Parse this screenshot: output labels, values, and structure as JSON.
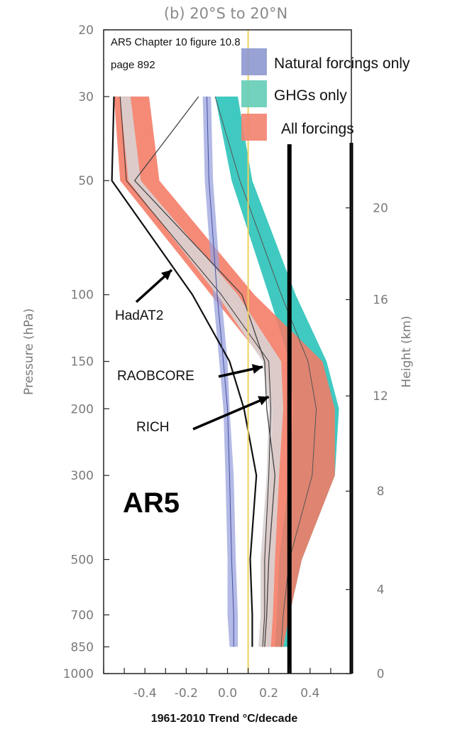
{
  "chart_data": {
    "type": "line",
    "title": "(b) 20°S to 20°N",
    "source_note": [
      "AR5 Chapter 10 figure 10.8",
      "page 892"
    ],
    "xlabel": "1961-2010 Trend °C/decade",
    "ylabel": "Pressure (hPa)",
    "ylabel_right": "Height (km)",
    "xlim": [
      -0.6,
      0.6
    ],
    "xticks": [
      "-0.4",
      "-0.2",
      "0.0",
      "0.2",
      "0.4"
    ],
    "xtick_values": [
      -0.4,
      -0.2,
      0.0,
      0.2,
      0.4
    ],
    "y_scale": "log",
    "ylim": [
      1000,
      20
    ],
    "yticks": [
      20,
      30,
      50,
      100,
      150,
      200,
      300,
      500,
      700,
      850,
      1000
    ],
    "right_ticks": [
      {
        "label": "20",
        "pressure": 59
      },
      {
        "label": "16",
        "pressure": 103
      },
      {
        "label": "12",
        "pressure": 185
      },
      {
        "label": "8",
        "pressure": 330
      },
      {
        "label": "4",
        "pressure": 600
      },
      {
        "label": "0",
        "pressure": 1000
      }
    ],
    "legend": [
      {
        "name": "Natural forcings only",
        "color": "#8e98cf"
      },
      {
        "name": "GHGs only",
        "color": "#63cdb6"
      },
      {
        "name": "All forcings",
        "color": "#f2826e"
      }
    ],
    "bands": [
      {
        "name": "GHGs only",
        "color": "#36c6bd",
        "opacity": 0.95,
        "p": [
          30,
          50,
          100,
          150,
          200,
          300,
          500,
          700,
          850
        ],
        "lo": [
          -0.06,
          0.02,
          0.2,
          0.3,
          0.32,
          0.3,
          0.25,
          0.24,
          0.23
        ],
        "hi": [
          0.05,
          0.12,
          0.33,
          0.48,
          0.54,
          0.52,
          0.36,
          0.3,
          0.29
        ]
      },
      {
        "name": "All forcings",
        "color": "#f47a64",
        "opacity": 0.88,
        "p": [
          30,
          50,
          100,
          150,
          200,
          300,
          500,
          700,
          850
        ],
        "lo": [
          -0.55,
          -0.52,
          -0.08,
          0.18,
          0.22,
          0.21,
          0.17,
          0.17,
          0.17
        ],
        "hi": [
          -0.38,
          -0.33,
          0.13,
          0.46,
          0.52,
          0.52,
          0.36,
          0.3,
          0.27
        ]
      },
      {
        "name": "Natural forcings only",
        "color": "#9aa3dd",
        "opacity": 0.75,
        "p": [
          30,
          50,
          100,
          150,
          200,
          300,
          500,
          700,
          850
        ],
        "lo": [
          -0.12,
          -0.11,
          -0.07,
          -0.04,
          -0.02,
          -0.01,
          0.0,
          0.0,
          0.01
        ],
        "hi": [
          -0.08,
          -0.07,
          -0.03,
          0.0,
          0.01,
          0.03,
          0.04,
          0.05,
          0.05
        ]
      },
      {
        "name": "",
        "color": "#d9d2d2",
        "opacity": 0.9,
        "p": [
          30,
          50,
          100,
          150,
          200,
          300,
          500,
          700,
          850
        ],
        "lo": [
          -0.52,
          -0.48,
          -0.05,
          0.17,
          0.2,
          0.19,
          0.16,
          0.16,
          0.15
        ],
        "hi": [
          -0.47,
          -0.42,
          0.05,
          0.26,
          0.27,
          0.25,
          0.23,
          0.22,
          0.21
        ]
      }
    ],
    "series": [
      {
        "name": "HadAT2",
        "color": "#111111",
        "width": 2.2,
        "p": [
          30,
          50,
          100,
          150,
          200,
          300,
          500,
          700,
          850
        ],
        "values": [
          -0.55,
          -0.56,
          -0.17,
          0.01,
          0.08,
          0.14,
          0.11,
          0.12,
          0.12
        ]
      },
      {
        "name": "RAOBCORE",
        "color": "#444444",
        "width": 1.3,
        "p": [
          30,
          50,
          100,
          150,
          200,
          300,
          500,
          700,
          850
        ],
        "values": [
          -0.14,
          -0.45,
          0.07,
          0.18,
          0.19,
          0.23,
          0.2,
          0.19,
          0.18
        ]
      },
      {
        "name": "RICH",
        "color": "#333333",
        "width": 1.0,
        "p": [
          30,
          50,
          100,
          150,
          200,
          300,
          500,
          700,
          850
        ],
        "values": [
          -0.52,
          -0.49,
          -0.03,
          0.2,
          0.21,
          0.2,
          0.18,
          0.18,
          0.17
        ]
      },
      {
        "name": "",
        "color": "#555555",
        "width": 1.0,
        "p": [
          30,
          50,
          100,
          150,
          200,
          300,
          500,
          700,
          850
        ],
        "values": [
          -0.06,
          0.06,
          0.26,
          0.39,
          0.43,
          0.41,
          0.3,
          0.27,
          0.26
        ]
      },
      {
        "name": "",
        "color": "#4a4fa0",
        "width": 1.0,
        "p": [
          30,
          50,
          100,
          150,
          200,
          300,
          500,
          700,
          850
        ],
        "values": [
          -0.1,
          -0.09,
          -0.05,
          -0.02,
          0.0,
          0.01,
          0.02,
          0.03,
          0.03
        ]
      }
    ],
    "reference_lines": [
      {
        "x": 0.1,
        "color": "#f0d060",
        "width": 2
      },
      {
        "x": 0.3,
        "color": "#000000",
        "width": 6
      }
    ],
    "annotations": [
      {
        "text": "HadAT2",
        "x": -0.52,
        "p": 123,
        "arrow_to": {
          "x": -0.27,
          "p": 86
        }
      },
      {
        "text": "RAOBCORE",
        "x": -0.5,
        "p": 170,
        "arrow_to": {
          "x": 0.17,
          "p": 155
        }
      },
      {
        "text": "RICH",
        "x": -0.43,
        "p": 235,
        "arrow_to": {
          "x": 0.2,
          "p": 186
        }
      },
      {
        "text": "AR5",
        "x": -0.45,
        "p": 375
      }
    ]
  }
}
